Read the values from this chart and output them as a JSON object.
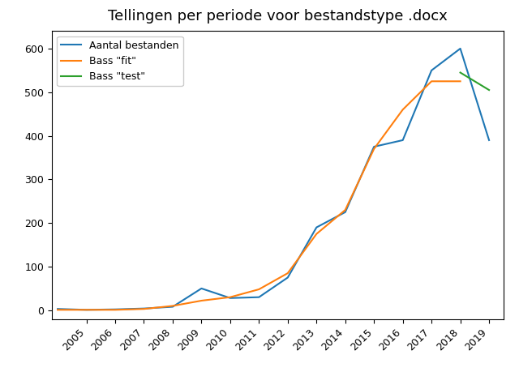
{
  "title": "Tellingen per periode voor bestandstype .docx",
  "years_data": [
    2004,
    2005,
    2006,
    2007,
    2008,
    2009,
    2010,
    2011,
    2012,
    2013,
    2014,
    2015,
    2016,
    2017,
    2018,
    2019
  ],
  "aantal_bestanden": [
    3,
    1,
    2,
    4,
    8,
    50,
    28,
    30,
    75,
    190,
    225,
    375,
    390,
    550,
    600,
    390
  ],
  "bass_fit_years": [
    2004,
    2005,
    2006,
    2007,
    2008,
    2009,
    2010,
    2011,
    2012,
    2013,
    2014,
    2015,
    2016,
    2017,
    2018
  ],
  "bass_fit_values": [
    1,
    1,
    1,
    3,
    10,
    22,
    30,
    48,
    85,
    175,
    230,
    370,
    460,
    525,
    525
  ],
  "bass_test_years": [
    2018,
    2019
  ],
  "bass_test_values": [
    545,
    505
  ],
  "color_aantal": "#1f77b4",
  "color_fit": "#ff7f0e",
  "color_test": "#2ca02c",
  "legend_labels": [
    "Aantal bestanden",
    "Bass \"fit\"",
    "Bass \"test\""
  ],
  "xtick_labels": [
    "2005",
    "2006",
    "2007",
    "2008",
    "2009",
    "2010",
    "2011",
    "2012",
    "2013",
    "2014",
    "2015",
    "2016",
    "2017",
    "2018",
    "2019"
  ],
  "xtick_positions": [
    2005,
    2006,
    2007,
    2008,
    2009,
    2010,
    2011,
    2012,
    2013,
    2014,
    2015,
    2016,
    2017,
    2018,
    2019
  ],
  "ytick_positions": [
    0,
    100,
    200,
    300,
    400,
    500,
    600
  ],
  "xlim": [
    2003.8,
    2019.5
  ],
  "ylim": [
    -20,
    640
  ]
}
